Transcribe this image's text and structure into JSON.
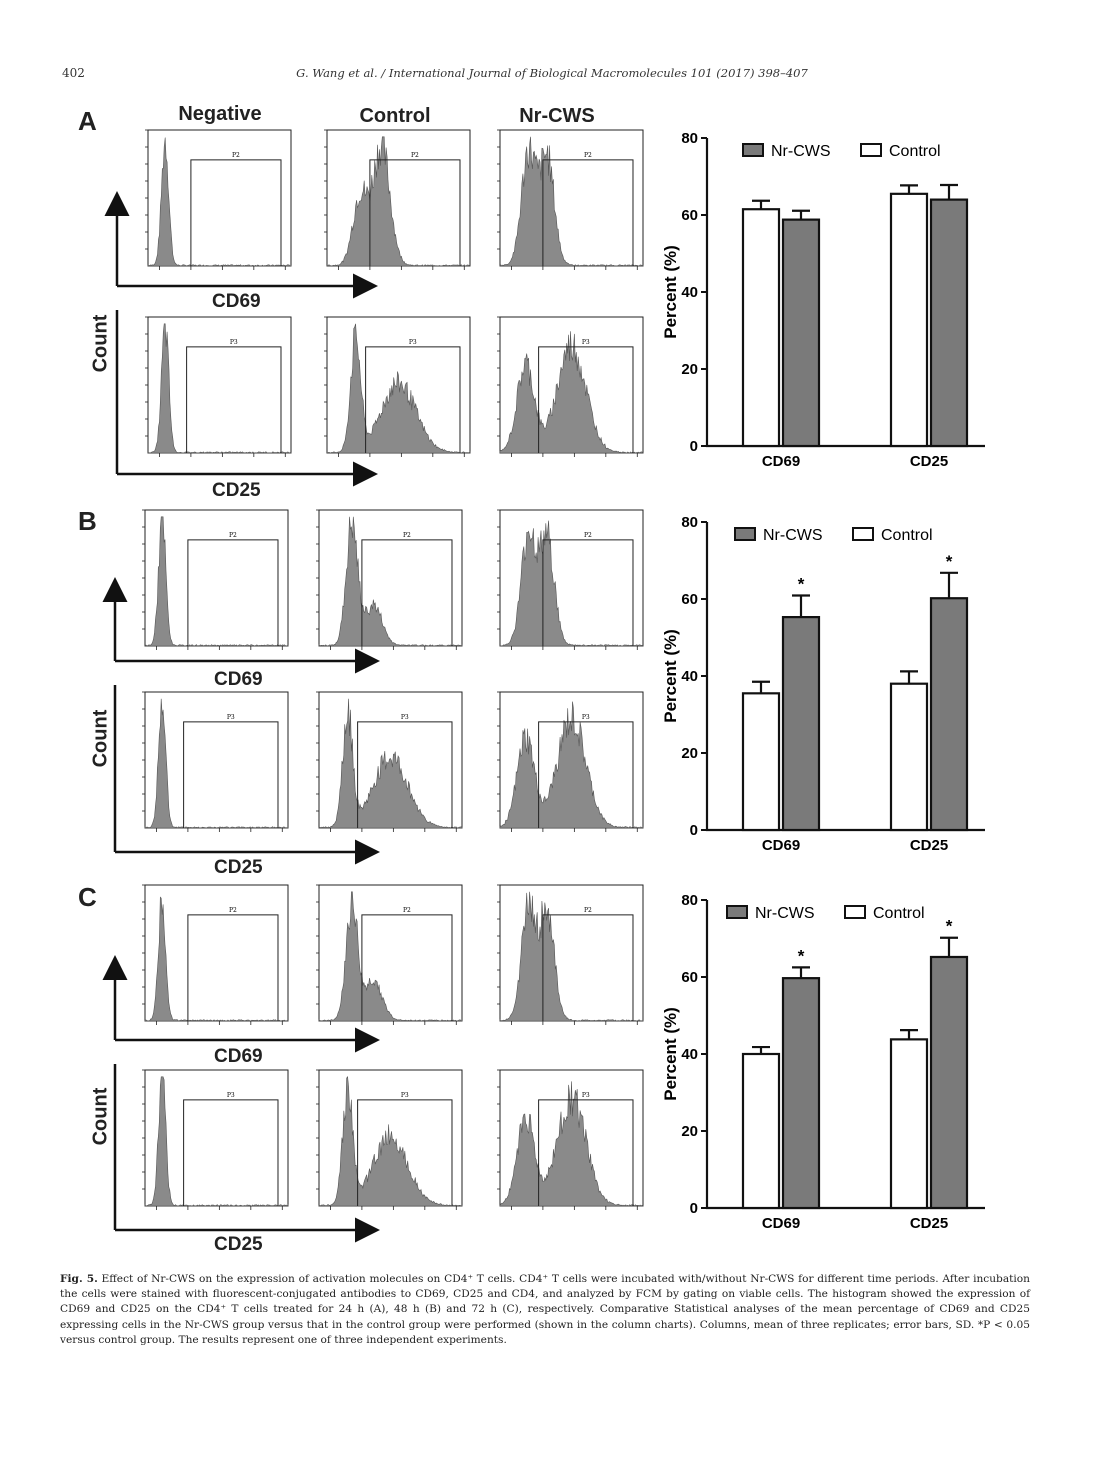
{
  "header": {
    "page_number": "402",
    "journal": "G. Wang et al. / International Journal of Biological Macromolecules 101 (2017) 398–407"
  },
  "column_titles": [
    "Negative",
    "Control",
    "Nr-CWS"
  ],
  "axis": {
    "count": "Count",
    "cd69": "CD69",
    "cd25": "CD25"
  },
  "panels": [
    {
      "letter": "A",
      "gate_top": "P2",
      "gate_bottom": "P3"
    },
    {
      "letter": "B",
      "gate_top": "P2",
      "gate_bottom": "P3"
    },
    {
      "letter": "C",
      "gate_top": "P2",
      "gate_bottom": "P3"
    }
  ],
  "chart_data": [
    {
      "type": "bar",
      "panel": "A",
      "categories": [
        "CD69",
        "CD25"
      ],
      "series": [
        {
          "name": "Control",
          "values": [
            61.5,
            65.5
          ],
          "sd": [
            2.2,
            2.2
          ]
        },
        {
          "name": "Nr-CWS",
          "values": [
            58.8,
            64.0
          ],
          "sd": [
            2.3,
            3.8
          ]
        }
      ],
      "ylabel": "Percent (%)",
      "ylim": [
        0,
        80
      ],
      "yticks": [
        0,
        20,
        40,
        60,
        80
      ],
      "legend": [
        "Nr-CWS",
        "Control"
      ],
      "significance": [
        "",
        ""
      ],
      "colors": {
        "Nr-CWS": "#7a7a7a",
        "Control": "#ffffff"
      }
    },
    {
      "type": "bar",
      "panel": "B",
      "categories": [
        "CD69",
        "CD25"
      ],
      "series": [
        {
          "name": "Control",
          "values": [
            35.5,
            38.0
          ],
          "sd": [
            3.0,
            3.2
          ]
        },
        {
          "name": "Nr-CWS",
          "values": [
            55.3,
            60.2
          ],
          "sd": [
            5.6,
            6.6
          ]
        }
      ],
      "ylabel": "Percent (%)",
      "ylim": [
        0,
        80
      ],
      "yticks": [
        0,
        20,
        40,
        60,
        80
      ],
      "legend": [
        "Nr-CWS",
        "Control"
      ],
      "significance": [
        "*",
        "*"
      ],
      "colors": {
        "Nr-CWS": "#7a7a7a",
        "Control": "#ffffff"
      }
    },
    {
      "type": "bar",
      "panel": "C",
      "categories": [
        "CD69",
        "CD25"
      ],
      "series": [
        {
          "name": "Control",
          "values": [
            40.0,
            43.8
          ],
          "sd": [
            1.8,
            2.4
          ]
        },
        {
          "name": "Nr-CWS",
          "values": [
            59.7,
            65.2
          ],
          "sd": [
            2.8,
            5.0
          ]
        }
      ],
      "ylabel": "Percent (%)",
      "ylim": [
        0,
        80
      ],
      "yticks": [
        0,
        20,
        40,
        60,
        80
      ],
      "legend": [
        "Nr-CWS",
        "Control"
      ],
      "significance": [
        "*",
        "*"
      ],
      "colors": {
        "Nr-CWS": "#7a7a7a",
        "Control": "#ffffff"
      }
    }
  ],
  "caption": {
    "label": "Fig. 5.",
    "text": " Effect of Nr-CWS on the expression of activation molecules on CD4⁺ T cells. CD4⁺ T cells were incubated with/without Nr-CWS for different time periods. After incubation the cells were stained with fluorescent-conjugated antibodies to CD69, CD25 and CD4, and analyzed by FCM by gating on viable cells. The histogram showed the expression of CD69 and CD25 on the CD4⁺ T cells treated for 24 h (A), 48 h (B) and 72 h (C), respectively. Comparative Statistical analyses of the mean percentage of CD69 and CD25 expressing cells in the Nr-CWS group versus that in the control group were performed (shown in the column charts). Columns, mean of three replicates; error bars, SD. *P < 0.05 versus control group. The results represent one of three independent experiments."
  }
}
